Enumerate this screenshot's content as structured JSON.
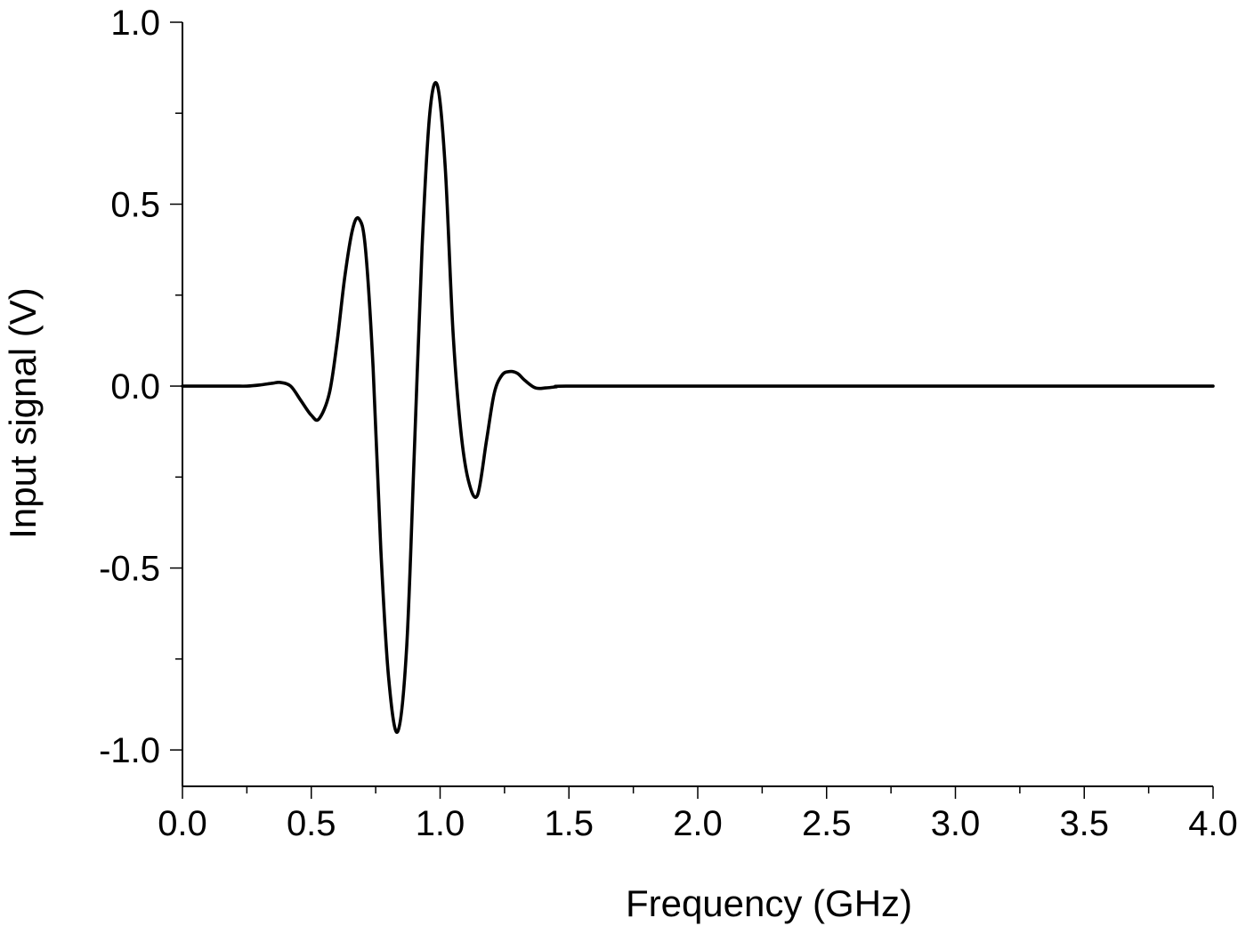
{
  "chart_data": {
    "type": "line",
    "title": "",
    "xlabel": "Frequency (GHz)",
    "ylabel": "Input signal (V)",
    "xlim": [
      0.0,
      4.0
    ],
    "ylim": [
      -1.1,
      1.0
    ],
    "x_ticks": [
      "0.0",
      "0.5",
      "1.0",
      "1.5",
      "2.0",
      "2.5",
      "3.0",
      "3.5",
      "4.0"
    ],
    "y_ticks": [
      "1.0",
      "0.5",
      "0.0",
      "-0.5",
      "-1.0"
    ],
    "grid": false,
    "legend": "none",
    "series": [
      {
        "color": "#000000",
        "x": [
          0.0,
          0.1,
          0.2,
          0.25,
          0.3,
          0.35,
          0.38,
          0.42,
          0.46,
          0.5,
          0.53,
          0.57,
          0.6,
          0.63,
          0.66,
          0.685,
          0.71,
          0.74,
          0.77,
          0.8,
          0.835,
          0.87,
          0.9,
          0.93,
          0.96,
          0.99,
          1.02,
          1.05,
          1.08,
          1.11,
          1.145,
          1.18,
          1.21,
          1.24,
          1.27,
          1.3,
          1.33,
          1.37,
          1.41,
          1.45,
          1.5,
          2.0,
          2.5,
          3.0,
          3.5,
          4.0
        ],
        "y": [
          0.0,
          0.0,
          0.0,
          0.0,
          0.003,
          0.008,
          0.01,
          0.0,
          -0.04,
          -0.08,
          -0.09,
          -0.02,
          0.12,
          0.3,
          0.43,
          0.46,
          0.38,
          0.05,
          -0.45,
          -0.8,
          -0.95,
          -0.72,
          -0.18,
          0.38,
          0.75,
          0.825,
          0.6,
          0.15,
          -0.12,
          -0.26,
          -0.3,
          -0.15,
          -0.02,
          0.03,
          0.04,
          0.035,
          0.015,
          -0.005,
          -0.005,
          -0.002,
          0.0,
          0.0,
          0.0,
          0.0,
          0.0,
          0.0
        ]
      }
    ]
  }
}
